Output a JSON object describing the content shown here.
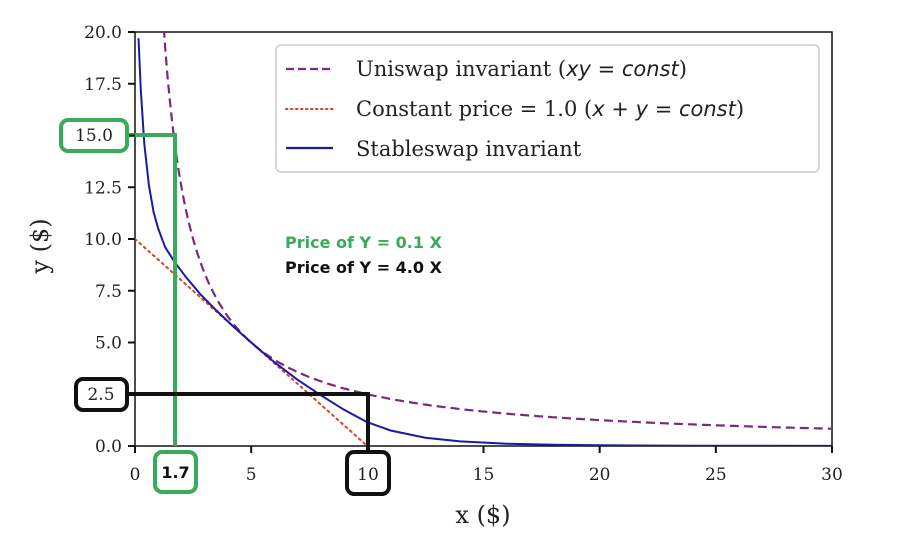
{
  "chart_data": {
    "type": "line",
    "title": "",
    "xlabel": "x ($)",
    "ylabel": "y ($)",
    "xlim": [
      0,
      30
    ],
    "ylim": [
      0,
      20
    ],
    "grid": false,
    "legend_position": "upper right",
    "x_ticks": [
      "0",
      "5",
      "10",
      "15",
      "20",
      "25",
      "30"
    ],
    "y_ticks": [
      "0.0",
      "2.5",
      "5.0",
      "7.5",
      "10.0",
      "12.5",
      "15.0",
      "17.5",
      "20.0"
    ],
    "series": [
      {
        "name": "Uniswap invariant (xy = const)",
        "style": "dashed",
        "color": "#7b2a7b",
        "formula": "x*y = 25",
        "x": [
          1.25,
          1.5,
          2,
          2.5,
          3,
          4,
          5,
          6,
          7.5,
          10,
          12.5,
          15,
          20,
          25,
          30
        ],
        "y": [
          20.0,
          16.67,
          12.5,
          10.0,
          8.33,
          6.25,
          5.0,
          4.17,
          3.33,
          2.5,
          2.0,
          1.67,
          1.25,
          1.0,
          0.83
        ]
      },
      {
        "name": "Constant price = 1.0 (x + y = const)",
        "style": "dotted",
        "color": "#d9412b",
        "formula": "x + y = 10",
        "x": [
          0,
          2.5,
          5,
          7.5,
          10
        ],
        "y": [
          10.0,
          7.5,
          5.0,
          2.5,
          0.0
        ]
      },
      {
        "name": "Stableswap invariant",
        "style": "solid",
        "color": "#1a1aa6",
        "x": [
          0.15,
          0.25,
          0.4,
          0.6,
          0.8,
          1.0,
          1.3,
          1.7,
          2.2,
          2.8,
          3.5,
          4.2,
          5.0,
          6.0,
          7.0,
          8.0,
          9.0,
          10.0,
          11.0,
          12.5,
          14.0,
          16.0,
          18.0,
          20.0,
          24.0,
          30.0
        ],
        "y": [
          19.7,
          17.2,
          14.6,
          12.6,
          11.3,
          10.5,
          9.6,
          8.9,
          8.15,
          7.35,
          6.55,
          5.8,
          5.0,
          4.05,
          3.2,
          2.45,
          1.75,
          1.15,
          0.75,
          0.4,
          0.22,
          0.11,
          0.06,
          0.035,
          0.015,
          0.005
        ]
      }
    ],
    "annotations": [
      {
        "text": "Price of Y = 0.1 X",
        "color": "#3aaa5c",
        "x": 6.5,
        "y": 10.1
      },
      {
        "text": "Price of Y = 4.0 X",
        "color": "#111111",
        "x": 6.5,
        "y": 8.9
      },
      {
        "type": "highlight-box",
        "axis": "y",
        "value": "15.0",
        "color": "#3aaa5c"
      },
      {
        "type": "highlight-box",
        "axis": "x",
        "value": "1.7",
        "color": "#3aaa5c"
      },
      {
        "type": "highlight-box",
        "axis": "y",
        "value": "2.5",
        "color": "#111111"
      },
      {
        "type": "highlight-box",
        "axis": "x",
        "value": "10",
        "color": "#111111"
      },
      {
        "type": "guide-line",
        "color": "#3aaa5c",
        "from": [
          0,
          15.0
        ],
        "corner": [
          1.7,
          15.0
        ],
        "to": [
          1.7,
          0
        ]
      },
      {
        "type": "guide-line",
        "color": "#111111",
        "from": [
          0,
          2.5
        ],
        "corner": [
          10,
          2.5
        ],
        "to": [
          10,
          0
        ]
      }
    ]
  },
  "legend": {
    "items": [
      {
        "label_prefix": "Uniswap invariant (",
        "label_math": "xy = const",
        "label_suffix": ")",
        "style": "dashed",
        "color": "#7b2a7b"
      },
      {
        "label_prefix": "Constant price = 1.0 (",
        "label_math": "x + y = const",
        "label_suffix": ")",
        "style": "dotted",
        "color": "#d9412b"
      },
      {
        "label_prefix": "Stableswap invariant",
        "label_math": "",
        "label_suffix": "",
        "style": "solid",
        "color": "#1a1aa6"
      }
    ]
  },
  "annotations": {
    "price_green": "Price of Y = 0.1 X",
    "price_black": "Price of Y = 4.0 X",
    "box_y_green": "15.0",
    "box_x_green": "1.7",
    "box_y_black": "2.5",
    "box_x_black": "10"
  },
  "axes": {
    "xlabel": "x ($)",
    "ylabel": "y ($)",
    "x_ticks": [
      "0",
      "5",
      "10",
      "15",
      "20",
      "25",
      "30"
    ],
    "y_ticks": [
      "0.0",
      "2.5",
      "5.0",
      "7.5",
      "10.0",
      "12.5",
      "15.0",
      "17.5",
      "20.0"
    ]
  },
  "colors": {
    "uniswap": "#7b2a7b",
    "constant": "#d9412b",
    "stableswap": "#1a1aa6",
    "green": "#3aaa5c",
    "black": "#111111"
  }
}
